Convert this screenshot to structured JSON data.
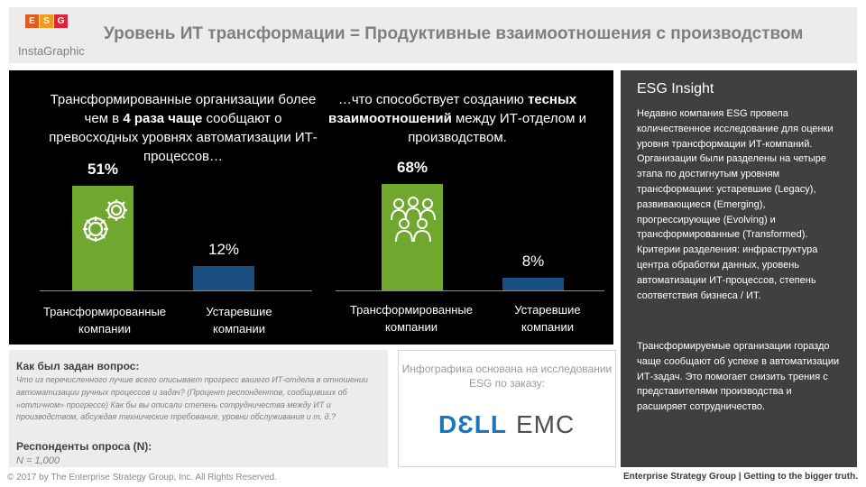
{
  "brand": {
    "logo_letters": [
      "E",
      "S",
      "G"
    ],
    "logo_colors": [
      "#e35b1e",
      "#f29a1a",
      "#e3233a"
    ],
    "instagraphic": "InstaGraphic"
  },
  "title": "Уровень ИТ трансформации = Продуктивные взаимоотношения с производством",
  "left_chart": {
    "caption_pre": "Трансформированные организации более чем в ",
    "caption_bold": "4 раза чаще",
    "caption_post": " сообщают о превосходных уровнях автоматизации ИТ-процессов…",
    "value_labels": [
      "51%",
      "12%"
    ],
    "icon": "gears-icon"
  },
  "right_chart": {
    "caption_pre": "…что способствует созданию ",
    "caption_bold": "тесных взаимоотношений",
    "caption_post": " между ИТ-отделом и производством.",
    "value_labels": [
      "68%",
      "8%"
    ],
    "icon": "people-group-icon"
  },
  "chart_data": [
    {
      "type": "bar",
      "categories": [
        "Трансформированные компании",
        "Устаревшие компании"
      ],
      "values": [
        51,
        12
      ],
      "colors": [
        "#70a72f",
        "#1a4e80"
      ],
      "ylim": [
        0,
        60
      ],
      "grid": false
    },
    {
      "type": "bar",
      "categories": [
        "Трансформированные компании",
        "Устаревшие компании"
      ],
      "values": [
        68,
        8
      ],
      "colors": [
        "#70a72f",
        "#1a4e80"
      ],
      "ylim": [
        0,
        80
      ],
      "grid": false
    }
  ],
  "insight": {
    "title": "ESG Insight",
    "para1": "Недавно компания ESG провела количественное исследование для оценки уровня трансформации ИТ-компаний. Организации были разделены на четыре этапа по достигнутым уровням трансформации:  устаревшие (Legacy), развивающиеся (Emerging), прогрессирующие (Evolving) и трансформированные (Transformed). Критерии разделения: инфраструктура центра обработки данных, уровень автоматизации ИТ-процессов, степень соответствия бизнеса / ИТ.",
    "para2": "Трансформируемые организации гораздо чаще сообщают об успехе в автоматизации ИТ-задач. Это помогает снизить трения с представителями производства и расширяет сотрудничество."
  },
  "method": {
    "heading": "Как был задан вопрос:",
    "question": "Что из перечисленного лучше всего описывает прогресс вашего ИТ-отдела в отношении автоматизации ручных процессов и задач? (Процент респондентов, сообщивших об «отличном» прогрессе) Как бы вы описали степень сотрудничества между ИТ и производством, абсуждая технические требования, уровни обслуживания и т. д.?",
    "respondents_heading": "Респонденты опроса (N):",
    "respondents_value": "N = 1,000"
  },
  "sponsor": {
    "text": "Инфографика основана на исследовании ESG по заказу:",
    "dell": "DƐLL",
    "emc": "EMC"
  },
  "footer": {
    "copyright": "© 2017 by The Enterprise Strategy Group, Inc. All Rights Reserved.",
    "tagline": "Enterprise Strategy Group | Getting to the bigger truth."
  }
}
